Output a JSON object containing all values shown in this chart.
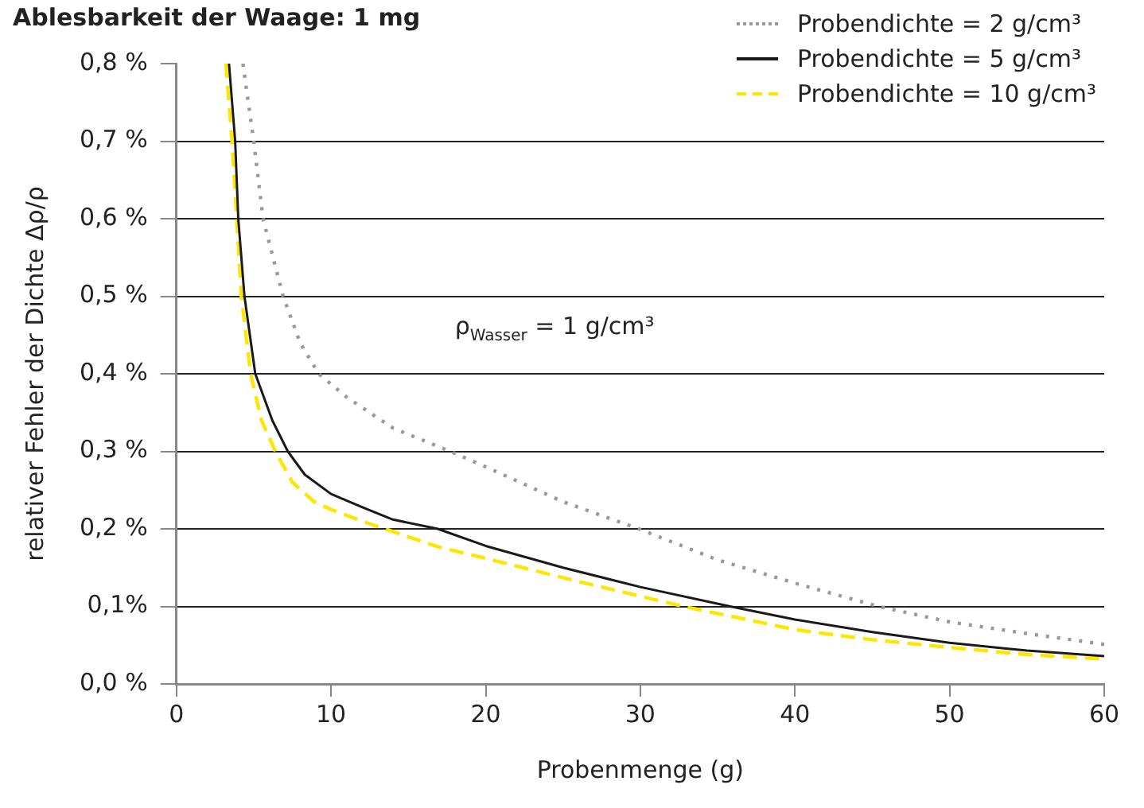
{
  "chart_data": {
    "type": "line",
    "title": "Ablesbarkeit der Waage: 1 mg",
    "xlabel": "Probenmenge (g)",
    "ylabel": "relativer Fehler der Dichte Δρ/ρ",
    "annotations": [
      "ρ$_{Wasser}$ = 1 g/cm³"
    ],
    "xlim": [
      0,
      60
    ],
    "xticks": [
      0,
      10,
      20,
      30,
      40,
      50,
      60
    ],
    "ylim": [
      0,
      0.8
    ],
    "yticks": [
      {
        "value": 0,
        "label": "0,0 %"
      },
      {
        "value": 0.1,
        "label": "0,1%"
      },
      {
        "value": 0.2,
        "label": "0,2 %"
      },
      {
        "value": 0.3,
        "label": "0,3 %"
      },
      {
        "value": 0.4,
        "label": "0,4 %"
      },
      {
        "value": 0.5,
        "label": "0,5 %"
      },
      {
        "value": 0.6,
        "label": "0,6 %"
      },
      {
        "value": 0.7,
        "label": "0,7 %"
      },
      {
        "value": 0.8,
        "label": "0,8 %"
      }
    ],
    "grid": "y",
    "legend": "top right",
    "marker": "none",
    "series": [
      {
        "name": "Probendichte = 2 g/cm³",
        "color": "#999999",
        "line_style": "dotted",
        "x": [
          4.3,
          5.0,
          5.6,
          6.9,
          8,
          9.2,
          11,
          14,
          17.7,
          20,
          25,
          29.9,
          35,
          40,
          45.4,
          50,
          55,
          60
        ],
        "values": [
          0.8,
          0.7,
          0.6,
          0.5,
          0.44,
          0.4,
          0.37,
          0.33,
          0.3,
          0.28,
          0.235,
          0.2,
          0.16,
          0.13,
          0.1,
          0.08,
          0.065,
          0.051
        ]
      },
      {
        "name": "Probendichte = 5 g/cm³",
        "color": "#1a1a1a",
        "line_style": "solid",
        "x": [
          3.4,
          3.8,
          4.0,
          4.4,
          5.1,
          6.2,
          7.2,
          8.3,
          10,
          12,
          14,
          16.9,
          20,
          25,
          30,
          35.8,
          40,
          45,
          50,
          55,
          60
        ],
        "values": [
          0.8,
          0.7,
          0.6,
          0.5,
          0.4,
          0.34,
          0.3,
          0.27,
          0.245,
          0.228,
          0.212,
          0.2,
          0.178,
          0.15,
          0.125,
          0.1,
          0.083,
          0.067,
          0.053,
          0.043,
          0.036
        ]
      },
      {
        "name": "Probendichte = 10 g/cm³",
        "color": "#ffe600",
        "line_style": "dashed",
        "x": [
          3.2,
          3.6,
          3.9,
          4.2,
          4.8,
          5.5,
          6.4,
          7.5,
          8.9,
          10,
          12,
          16.9,
          20,
          25,
          30,
          32.8,
          40,
          45,
          50,
          55,
          60
        ],
        "values": [
          0.8,
          0.7,
          0.6,
          0.5,
          0.4,
          0.34,
          0.3,
          0.26,
          0.235,
          0.225,
          0.21,
          0.177,
          0.162,
          0.137,
          0.113,
          0.1,
          0.07,
          0.057,
          0.047,
          0.038,
          0.032
        ]
      }
    ]
  }
}
